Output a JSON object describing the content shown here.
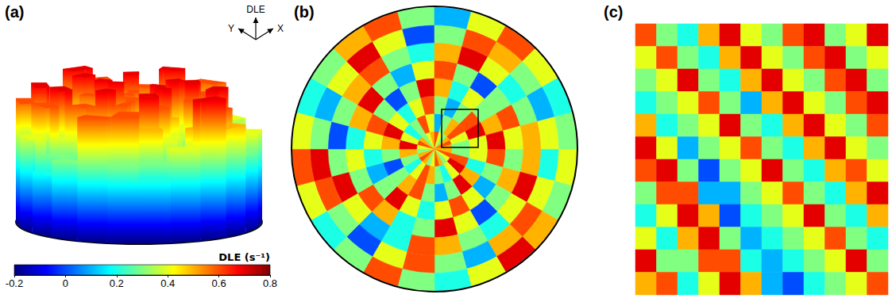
{
  "chart_data": {
    "type": "field",
    "panels": {
      "a": {
        "label": "(a)",
        "axes": {
          "up": "DLE",
          "left": "Y",
          "right": "X"
        }
      },
      "b": {
        "label": "(b)"
      },
      "c": {
        "label": "(c)"
      }
    },
    "colorbar": {
      "title": "DLE (s⁻¹)",
      "range": [
        -0.2,
        0.8
      ],
      "ticks": [
        -0.2,
        0,
        0.2,
        0.4,
        0.6,
        0.8
      ]
    },
    "dle_field_polar": [
      [
        0.5,
        0.6,
        0.4,
        0.3,
        0.5,
        0.6,
        0.4,
        0.3,
        0.5,
        0.6,
        0.5,
        0.3,
        0.4,
        0.6,
        0.5,
        0.3,
        0.4,
        0.5,
        0.6,
        0.4,
        0.3,
        0.5,
        0.6,
        0.5
      ],
      [
        0.3,
        0.6,
        0.7,
        0.4,
        0.2,
        0.3,
        0.5,
        0.6,
        0.4,
        0.2,
        0.3,
        0.5,
        0.7,
        0.4,
        0.2,
        0.3,
        0.6,
        0.4,
        0.1,
        0.3,
        0.5,
        0.6,
        0.4,
        0.3
      ],
      [
        0.4,
        0.2,
        0.5,
        0.7,
        0.3,
        0.1,
        0.3,
        0.6,
        0.5,
        0.3,
        0.0,
        0.3,
        0.5,
        0.7,
        0.4,
        0.2,
        0.4,
        0.6,
        0.3,
        0.1,
        0.3,
        0.6,
        0.7,
        0.4
      ],
      [
        0.6,
        0.3,
        0.1,
        0.4,
        0.6,
        0.4,
        0.2,
        0.4,
        0.7,
        0.3,
        0.1,
        0.2,
        0.4,
        0.6,
        0.3,
        0.0,
        0.3,
        0.7,
        0.5,
        0.2,
        0.4,
        0.3,
        0.5,
        0.7
      ],
      [
        0.3,
        0.5,
        0.3,
        0.0,
        0.4,
        0.7,
        0.3,
        0.2,
        0.5,
        0.6,
        0.3,
        0.4,
        0.2,
        0.5,
        0.7,
        0.3,
        0.1,
        0.4,
        0.6,
        0.3,
        0.0,
        0.3,
        0.6,
        0.4
      ],
      [
        0.5,
        0.7,
        0.4,
        0.2,
        0.3,
        0.5,
        0.6,
        0.2,
        0.1,
        0.4,
        0.7,
        0.3,
        0.0,
        0.3,
        0.5,
        0.6,
        0.3,
        0.2,
        0.5,
        0.7,
        0.4,
        0.2,
        0.3,
        0.5
      ],
      [
        0.2,
        0.4,
        0.6,
        0.5,
        0.1,
        0.3,
        0.6,
        0.4,
        0.0,
        0.3,
        0.6,
        0.7,
        0.3,
        0.1,
        0.4,
        0.7,
        0.4,
        0.0,
        0.3,
        0.6,
        0.5,
        0.3,
        0.1,
        0.4
      ],
      [
        0.4,
        0.3,
        0.5,
        0.7,
        0.4,
        0.2,
        0.3,
        0.6,
        0.3,
        0.2,
        0.4,
        0.6,
        0.4,
        0.2,
        0.3,
        0.5,
        0.6,
        0.3,
        0.1,
        0.4,
        0.6,
        0.4,
        0.2,
        0.3
      ]
    ],
    "dle_field_zoom": [
      [
        0.6,
        0.3,
        0.2,
        0.5,
        0.7,
        0.4,
        0.3,
        0.6,
        0.7,
        0.3,
        0.4,
        0.7
      ],
      [
        0.4,
        0.6,
        0.3,
        0.2,
        0.5,
        0.7,
        0.4,
        0.3,
        0.6,
        0.7,
        0.3,
        0.4
      ],
      [
        0.3,
        0.4,
        0.7,
        0.3,
        0.2,
        0.5,
        0.7,
        0.4,
        0.3,
        0.6,
        0.7,
        0.3
      ],
      [
        0.2,
        0.3,
        0.4,
        0.6,
        0.3,
        0.1,
        0.5,
        0.7,
        0.4,
        0.3,
        0.6,
        0.7
      ],
      [
        0.5,
        0.2,
        0.3,
        0.4,
        0.7,
        0.3,
        0.2,
        0.5,
        0.7,
        0.4,
        0.3,
        0.6
      ],
      [
        0.7,
        0.4,
        0.1,
        0.3,
        0.4,
        0.6,
        0.3,
        0.2,
        0.5,
        0.7,
        0.4,
        0.3
      ],
      [
        0.6,
        0.7,
        0.3,
        0.0,
        0.3,
        0.4,
        0.7,
        0.3,
        0.2,
        0.5,
        0.6,
        0.4
      ],
      [
        0.3,
        0.6,
        0.6,
        0.1,
        0.1,
        0.3,
        0.4,
        0.6,
        0.3,
        0.2,
        0.5,
        0.7
      ],
      [
        0.2,
        0.4,
        0.7,
        0.5,
        0.0,
        0.2,
        0.3,
        0.4,
        0.7,
        0.3,
        0.2,
        0.5
      ],
      [
        0.4,
        0.2,
        0.5,
        0.7,
        0.3,
        0.1,
        0.2,
        0.3,
        0.4,
        0.6,
        0.3,
        0.2
      ],
      [
        0.7,
        0.3,
        0.3,
        0.6,
        0.6,
        0.2,
        0.1,
        0.2,
        0.3,
        0.4,
        0.7,
        0.3
      ],
      [
        0.5,
        0.6,
        0.2,
        0.4,
        0.7,
        0.5,
        0.1,
        0.0,
        0.2,
        0.3,
        0.4,
        0.6
      ]
    ]
  }
}
